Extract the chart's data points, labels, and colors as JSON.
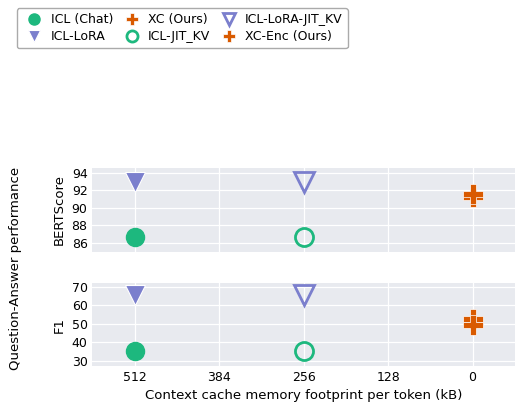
{
  "x_ticks": [
    512,
    384,
    256,
    128,
    0
  ],
  "x_label": "Context cache memory footprint per token (kB)",
  "y_label_combined": "Question-Answer performance",
  "plot_bg": "#e8eaef",
  "series": [
    {
      "name": "ICL (Chat)",
      "marker": "o",
      "color": "#1db87e",
      "filled": true,
      "markersize": 13,
      "bertscore": [
        [
          512,
          86.7
        ]
      ],
      "f1": [
        [
          512,
          35.0
        ]
      ]
    },
    {
      "name": "ICL-JIT_KV",
      "marker": "o",
      "color": "#1db87e",
      "filled": false,
      "markersize": 13,
      "bertscore": [
        [
          256,
          86.7
        ]
      ],
      "f1": [
        [
          256,
          35.0
        ]
      ]
    },
    {
      "name": "ICL-LoRA",
      "marker": "v",
      "color": "#7b7fcd",
      "filled": true,
      "markersize": 15,
      "bertscore": [
        [
          512,
          93.0
        ]
      ],
      "f1": [
        [
          512,
          65.5
        ]
      ]
    },
    {
      "name": "ICL-LoRA-JIT_KV",
      "marker": "v",
      "color": "#7b7fcd",
      "filled": false,
      "markersize": 15,
      "bertscore": [
        [
          256,
          93.0
        ]
      ],
      "f1": [
        [
          256,
          65.5
        ]
      ]
    },
    {
      "name": "XC (Ours)",
      "marker": "X",
      "color": "#d95a00",
      "filled": true,
      "markersize": 14,
      "bertscore": [
        [
          0,
          91.2
        ]
      ],
      "f1": [
        [
          0,
          52.5
        ]
      ]
    },
    {
      "name": "XC-Enc (Ours)",
      "marker": "X",
      "color": "#d95a00",
      "filled": true,
      "markersize": 14,
      "bertscore": [
        [
          0,
          91.6
        ]
      ],
      "f1": [
        [
          0,
          49.0
        ]
      ]
    }
  ],
  "bertscore_ylim": [
    85.0,
    94.5
  ],
  "bertscore_yticks": [
    86,
    88,
    90,
    92,
    94
  ],
  "f1_ylim": [
    27,
    72
  ],
  "f1_yticks": [
    30,
    40,
    50,
    60,
    70
  ],
  "tick_fontsize": 9,
  "label_fontsize": 9.5,
  "legend_fontsize": 9
}
